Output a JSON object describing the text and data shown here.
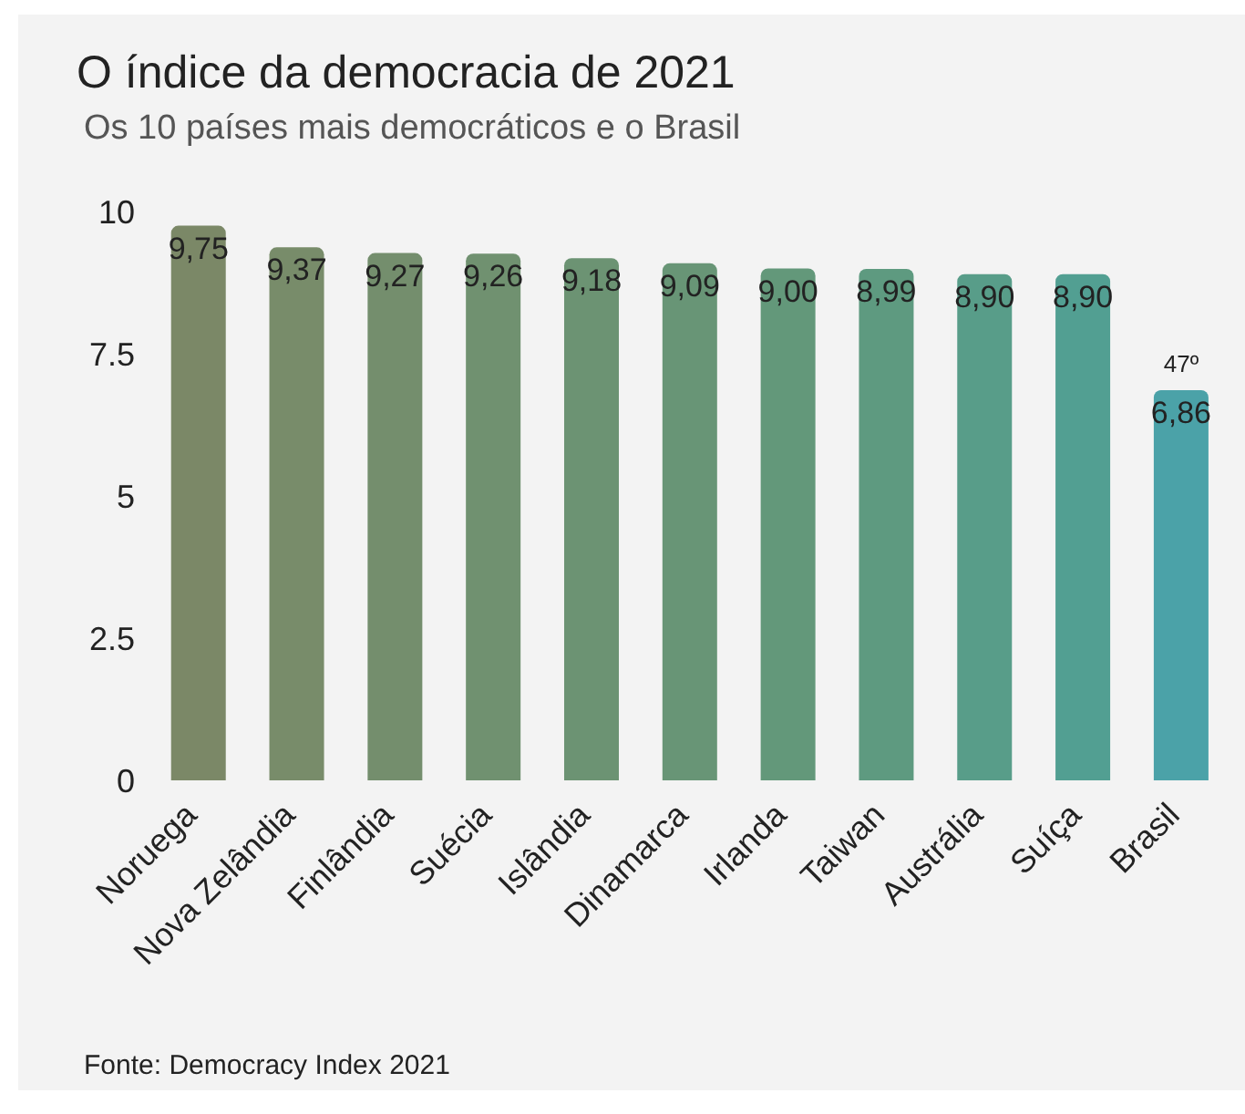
{
  "chart_data": {
    "type": "bar",
    "title": "O índice da democracia de 2021",
    "subtitle": "Os 10 países mais democráticos e o Brasil",
    "categories": [
      "Noruega",
      "Nova Zelândia",
      "Finlândia",
      "Suécia",
      "Islândia",
      "Dinamarca",
      "Irlanda",
      "Taiwan",
      "Austrália",
      "Suíça",
      "Brasil"
    ],
    "values": [
      9.75,
      9.37,
      9.27,
      9.26,
      9.18,
      9.09,
      9.0,
      8.99,
      8.9,
      8.9,
      6.86
    ],
    "value_labels": [
      "9,75",
      "9,37",
      "9,27",
      "9,26",
      "9,18",
      "9,09",
      "9,00",
      "8,99",
      "8,90",
      "8,90",
      "6,86"
    ],
    "colors": [
      "#7b8867",
      "#788c6a",
      "#748e6d",
      "#709170",
      "#6c9373",
      "#689576",
      "#63987a",
      "#5e9a80",
      "#589d89",
      "#529f92",
      "#4ba2a8"
    ],
    "ylim": [
      0,
      10
    ],
    "yticks": [
      0,
      2.5,
      5,
      7.5,
      10
    ],
    "grid": false,
    "annotations": [
      {
        "text": "47º",
        "x": "Brasil",
        "y": 6.86
      },
      "Fonte: Democracy Index 2021"
    ]
  }
}
